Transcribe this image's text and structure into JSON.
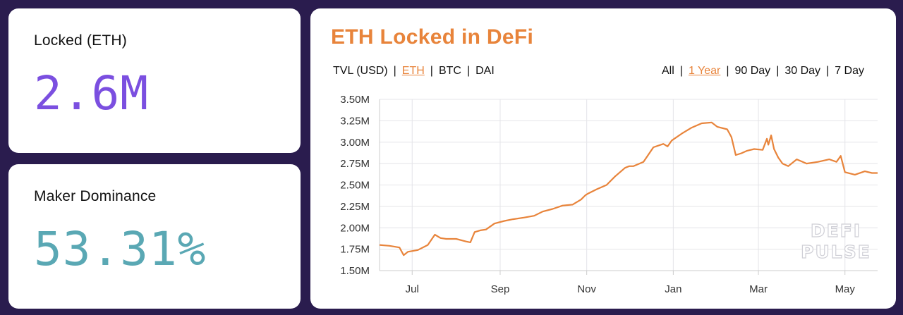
{
  "cards": {
    "locked": {
      "label": "Locked (ETH)",
      "value": "2.6M",
      "color": "#7b4fe0"
    },
    "dominance": {
      "label": "Maker Dominance",
      "value": "53.31%",
      "color": "#5aa8b4"
    }
  },
  "chart_panel": {
    "title": "ETH Locked in DeFi",
    "accent": "#e8843b",
    "metric_options": [
      {
        "label": "TVL (USD)",
        "active": false
      },
      {
        "label": "ETH",
        "active": true
      },
      {
        "label": "BTC",
        "active": false
      },
      {
        "label": "DAI",
        "active": false
      }
    ],
    "range_options": [
      {
        "label": "All",
        "active": false
      },
      {
        "label": "1 Year",
        "active": true
      },
      {
        "label": "90 Day",
        "active": false
      },
      {
        "label": "30 Day",
        "active": false
      },
      {
        "label": "7 Day",
        "active": false
      }
    ],
    "watermark": [
      "DEFI",
      "PULSE"
    ]
  },
  "chart_data": {
    "type": "line",
    "title": "ETH Locked in DeFi",
    "xlabel": "",
    "ylabel": "",
    "ylim": [
      1.5,
      3.5
    ],
    "yticks": [
      1.5,
      1.75,
      2.0,
      2.25,
      2.5,
      2.75,
      3.0,
      3.25,
      3.5
    ],
    "ytick_labels": [
      "1.50M",
      "1.75M",
      "2.00M",
      "2.25M",
      "2.50M",
      "2.75M",
      "3.00M",
      "3.25M",
      "3.50M"
    ],
    "xlim": [
      "2019-06-08",
      "2020-05-24"
    ],
    "xticks": [
      "2019-07-01",
      "2019-09-01",
      "2019-11-01",
      "2020-01-01",
      "2020-03-01",
      "2020-05-01"
    ],
    "xtick_labels": [
      "Jul",
      "Sep",
      "Nov",
      "Jan",
      "Mar",
      "May"
    ],
    "grid": true,
    "line_color": "#e8843b",
    "series": [
      {
        "x": [
          "2019-06-08",
          "2019-06-15",
          "2019-06-22",
          "2019-06-25",
          "2019-06-28",
          "2019-07-05",
          "2019-07-12",
          "2019-07-17",
          "2019-07-21",
          "2019-07-25",
          "2019-08-01",
          "2019-08-08",
          "2019-08-11",
          "2019-08-14",
          "2019-08-18",
          "2019-08-22",
          "2019-08-28",
          "2019-09-04",
          "2019-09-10",
          "2019-09-18",
          "2019-09-25",
          "2019-10-01",
          "2019-10-08",
          "2019-10-15",
          "2019-10-22",
          "2019-10-28",
          "2019-10-31",
          "2019-11-02",
          "2019-11-08",
          "2019-11-15",
          "2019-11-21",
          "2019-11-28",
          "2019-12-01",
          "2019-12-04",
          "2019-12-11",
          "2019-12-18",
          "2019-12-25",
          "2019-12-28",
          "2019-12-31",
          "2020-01-07",
          "2020-01-14",
          "2020-01-21",
          "2020-01-28",
          "2020-02-01",
          "2020-02-08",
          "2020-02-11",
          "2020-02-14",
          "2020-02-18",
          "2020-02-22",
          "2020-02-27",
          "2020-03-04",
          "2020-03-07",
          "2020-03-08",
          "2020-03-10",
          "2020-03-12",
          "2020-03-15",
          "2020-03-18",
          "2020-03-22",
          "2020-03-28",
          "2020-04-04",
          "2020-04-12",
          "2020-04-20",
          "2020-04-25",
          "2020-04-28",
          "2020-05-01",
          "2020-05-08",
          "2020-05-15",
          "2020-05-20",
          "2020-05-24"
        ],
        "values": [
          1.8,
          1.79,
          1.77,
          1.68,
          1.72,
          1.74,
          1.8,
          1.92,
          1.88,
          1.87,
          1.87,
          1.84,
          1.83,
          1.95,
          1.97,
          1.98,
          2.05,
          2.08,
          2.1,
          2.12,
          2.14,
          2.19,
          2.22,
          2.26,
          2.27,
          2.33,
          2.38,
          2.4,
          2.45,
          2.5,
          2.6,
          2.7,
          2.72,
          2.72,
          2.77,
          2.94,
          2.98,
          2.95,
          3.02,
          3.1,
          3.17,
          3.22,
          3.23,
          3.18,
          3.15,
          3.06,
          2.85,
          2.87,
          2.9,
          2.92,
          2.91,
          3.04,
          2.97,
          3.08,
          2.92,
          2.82,
          2.75,
          2.72,
          2.8,
          2.75,
          2.77,
          2.8,
          2.77,
          2.84,
          2.65,
          2.62,
          2.66,
          2.64,
          2.64
        ]
      }
    ]
  }
}
